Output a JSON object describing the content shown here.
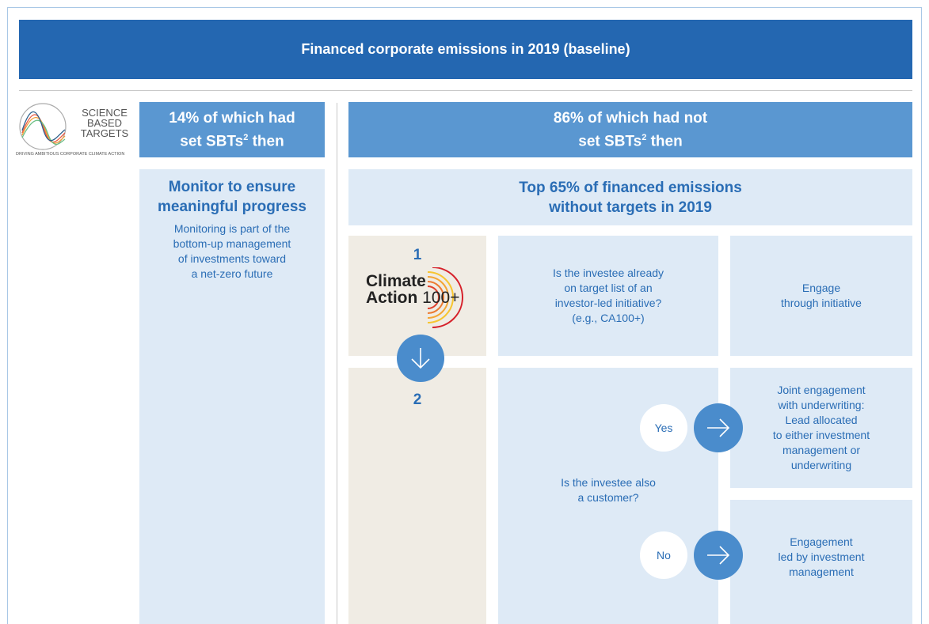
{
  "header": {
    "title": "Financed corporate emissions in 2019 (baseline)"
  },
  "sbt_logo": {
    "lines": [
      "SCIENCE",
      "BASED",
      "TARGETS"
    ],
    "tagline": "DRIVING AMBITIOUS CORPORATE CLIMATE ACTION"
  },
  "left": {
    "heading": {
      "line1": "14% of which had",
      "line2": "set SBTs",
      "sup": "2",
      "after": " then"
    },
    "box_title": [
      "Monitor to ensure",
      "meaningful progress"
    ],
    "box_text": [
      "Monitoring is part of the",
      "bottom-up management",
      "of investments toward",
      "a net-zero future"
    ]
  },
  "right": {
    "heading": {
      "line1": "86% of which had not",
      "line2": "set SBTs",
      "sup": "2",
      "after": " then"
    },
    "subheading": [
      "Top 65% of financed emissions",
      "without targets in 2019"
    ],
    "steps": [
      {
        "number": "1",
        "logo": {
          "word1": "Climate",
          "word2": "Action",
          "word3": "100+"
        },
        "question": [
          "Is the investee already",
          "on target list of an",
          "investor-led initiative?",
          "(e.g., CA100+)"
        ],
        "outcome": [
          "Engage",
          "through initiative"
        ]
      },
      {
        "number": "2",
        "question": [
          "Is the investee also",
          "a customer?"
        ],
        "yes": "Yes",
        "yes_outcome": [
          "Joint engagement",
          "with underwriting:",
          "Lead allocated",
          "to either investment",
          "management or",
          "underwriting"
        ],
        "no": "No",
        "no_outcome": [
          "Engagement",
          "led by investment",
          "management"
        ]
      }
    ]
  }
}
